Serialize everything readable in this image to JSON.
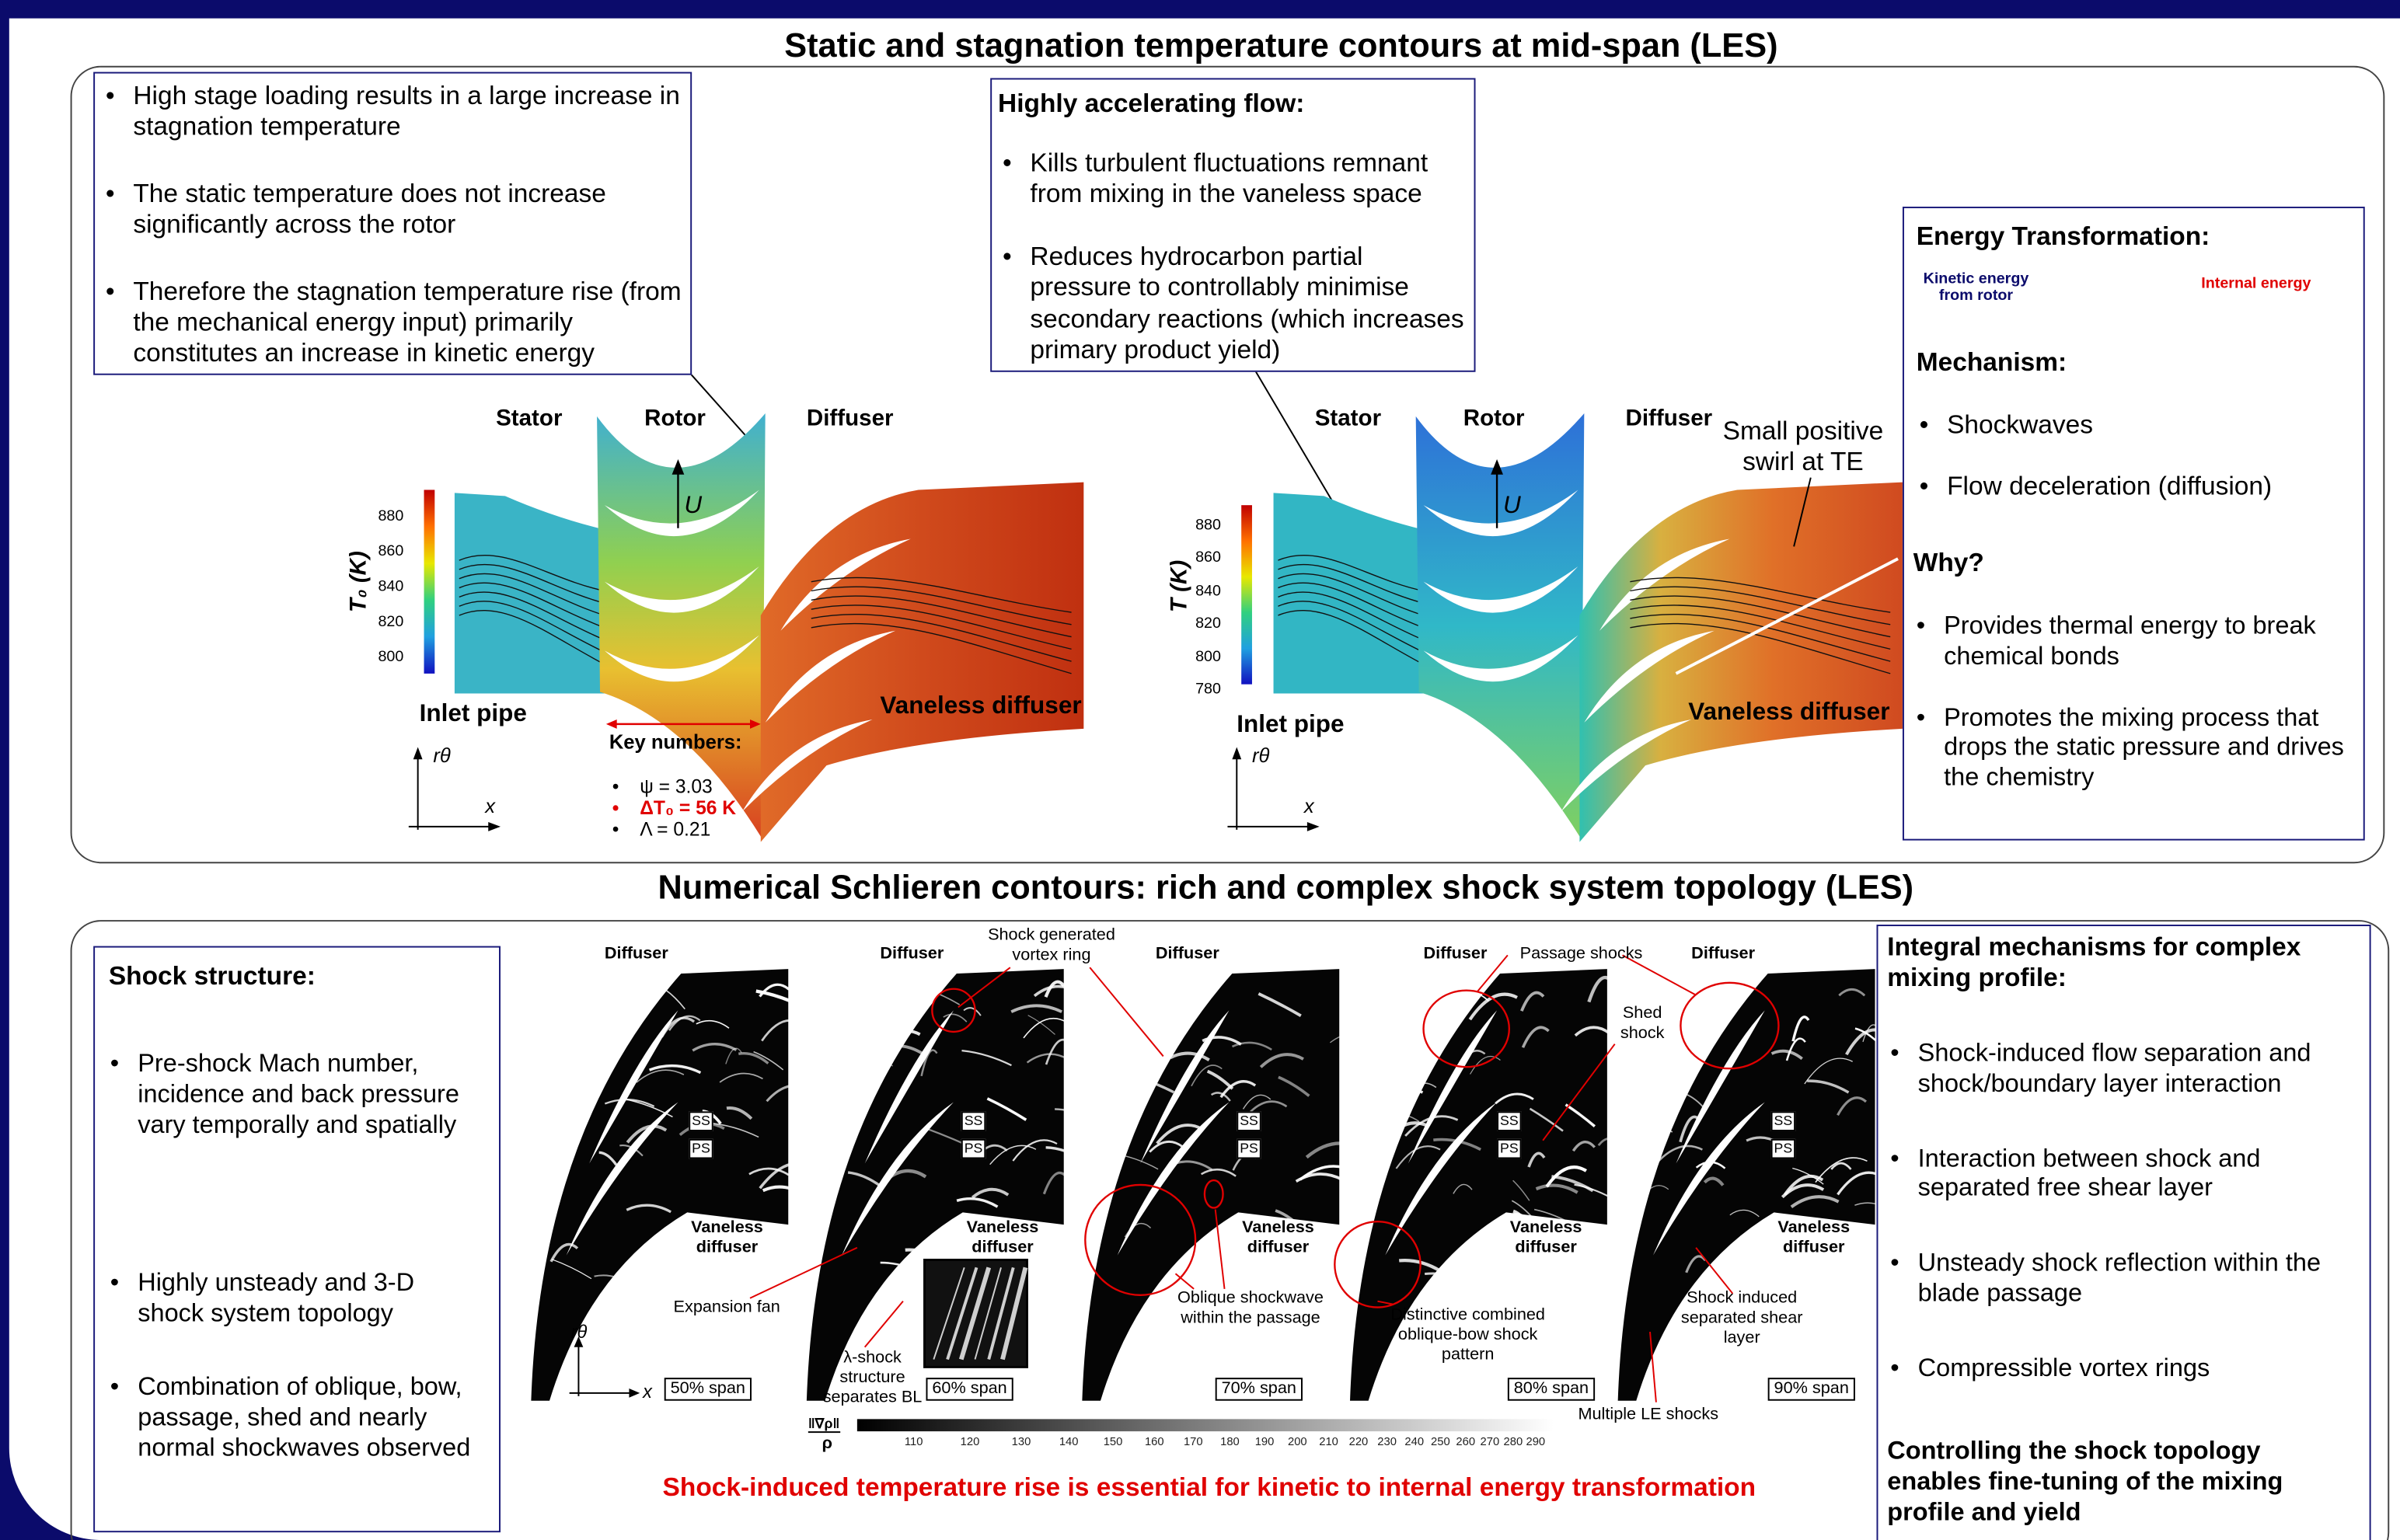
{
  "header": {
    "title1": "Static and stagnation temperature contours at mid-span (LES)",
    "title2": "Numerical Schlieren contours: rich and complex shock system topology (LES)"
  },
  "temperature": {
    "left_box": {
      "bullets": [
        "High stage loading results in a large increase in stagnation temperature",
        "The static temperature does not increase significantly across the rotor",
        "Therefore the stagnation temperature rise (from the mechanical energy input) primarily constitutes an increase in kinetic energy"
      ]
    },
    "middle_box": {
      "heading": "Highly accelerating flow:",
      "bullets": [
        "Kills turbulent fluctuations remnant from mixing in the vaneless space",
        "Reduces hydrocarbon partial pressure to controllably minimise secondary reactions (which increases primary product yield)"
      ]
    },
    "right_box": {
      "heading": "Energy Transformation:",
      "source": "Kinetic energy from rotor",
      "target": "Internal energy",
      "mechanism_heading": "Mechanism:",
      "mechanism": [
        "Shockwaves",
        "Flow deceleration (diffusion)"
      ],
      "why_heading": "Why?",
      "why": [
        "Provides thermal energy to break chemical bonds",
        "Promotes the mixing process that drops the static pressure and drives the chemistry"
      ]
    },
    "stagnation_plot": {
      "stator": "Stator",
      "rotor": "Rotor",
      "diffuser": "Diffuser",
      "inlet": "Inlet pipe",
      "vaneless": "Vaneless diffuser",
      "blade_speed": "U",
      "colorbar_label": "T₀ (K)",
      "colorbar_ticks": [
        800,
        820,
        840,
        860,
        880
      ],
      "axis_y": "rθ",
      "axis_x": "x",
      "key_heading": "Key numbers:",
      "key_numbers": [
        "ψ = 3.03",
        "ΔT₀ = 56 K",
        "Λ = 0.21"
      ]
    },
    "static_plot": {
      "stator": "Stator",
      "rotor": "Rotor",
      "diffuser": "Diffuser",
      "inlet": "Inlet pipe",
      "vaneless": "Vaneless diffuser",
      "blade_speed": "U",
      "colorbar_label": "T (K)",
      "colorbar_ticks": [
        780,
        800,
        820,
        840,
        860,
        880
      ],
      "axis_y": "rθ",
      "axis_x": "x",
      "annotation": "Small positive swirl at TE"
    }
  },
  "schlieren": {
    "left_box": {
      "heading": "Shock structure:",
      "bullets": [
        "Pre-shock Mach number, incidence and back pressure vary temporally and spatially",
        "Highly unsteady and 3-D shock system topology",
        "Combination of oblique, bow, passage, shed and nearly normal shockwaves observed"
      ]
    },
    "panels": [
      {
        "diffuser": "Diffuser",
        "vaneless": "Vaneless diffuser",
        "ss": "SS",
        "ps": "PS",
        "span": "50% span"
      },
      {
        "diffuser": "Diffuser",
        "vaneless": "Vaneless diffuser",
        "ss": "SS",
        "ps": "PS",
        "span": "60% span"
      },
      {
        "diffuser": "Diffuser",
        "vaneless": "Vaneless diffuser",
        "ss": "SS",
        "ps": "PS",
        "span": "70% span"
      },
      {
        "diffuser": "Diffuser",
        "vaneless": "Vaneless diffuser",
        "ss": "SS",
        "ps": "PS",
        "span": "80% span"
      },
      {
        "diffuser": "Diffuser",
        "vaneless": "Vaneless diffuser",
        "ss": "SS",
        "ps": "PS",
        "span": "90% span"
      }
    ],
    "annotations": {
      "vortex_ring": "Shock generated vortex ring",
      "expansion_fan": "Expansion fan",
      "lambda_shock": "λ-shock structure separates BL",
      "oblique": "Oblique shockwave within the passage",
      "passage": "Passage shocks",
      "shed": "Shed shock",
      "bow": "Distinctive combined oblique-bow shock pattern",
      "shear_layer": "Shock induced separated shear layer",
      "le_shocks": "Multiple LE shocks"
    },
    "axis_y": "rθ",
    "axis_x": "x",
    "colorbar_label": "‖∇ρ‖",
    "colorbar_label_denominator": "ρ",
    "colorbar_ticks": [
      110,
      120,
      130,
      140,
      150,
      160,
      170,
      180,
      190,
      200,
      210,
      220,
      230,
      240,
      250,
      260,
      270,
      280,
      290
    ],
    "conclusion": "Shock-induced temperature rise is essential for kinetic to internal energy transformation",
    "right_box": {
      "heading": "Integral mechanisms for complex mixing profile:",
      "bullets": [
        "Shock-induced flow separation and shock/boundary layer interaction",
        "Interaction between shock and separated free shear layer",
        "Unsteady shock reflection within the blade passage",
        "Compressible vortex rings"
      ],
      "closing": "Controlling the shock topology enables fine-tuning of the mixing profile and yield"
    }
  }
}
